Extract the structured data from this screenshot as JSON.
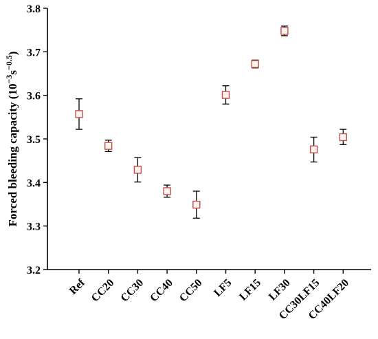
{
  "chart_data": {
    "type": "scatter",
    "title": "",
    "xlabel": "",
    "ylabel_main": "Forced bleeding capacity (10",
    "ylabel_exp1": "−3",
    "ylabel_mid": "s",
    "ylabel_exp2": "−0.5",
    "ylabel_end": ")",
    "categories": [
      "Ref",
      "CC20",
      "CC30",
      "CC40",
      "CC50",
      "LF5",
      "LF15",
      "LF30",
      "CC30LF15",
      "CC40LF20"
    ],
    "values": [
      3.557,
      3.484,
      3.429,
      3.38,
      3.349,
      3.601,
      3.672,
      3.748,
      3.476,
      3.504
    ],
    "error_low": [
      3.522,
      3.471,
      3.401,
      3.366,
      3.318,
      3.58,
      3.663,
      3.737,
      3.447,
      3.487
    ],
    "error_high": [
      3.592,
      3.497,
      3.457,
      3.394,
      3.38,
      3.622,
      3.681,
      3.759,
      3.504,
      3.522
    ],
    "ylim": [
      3.2,
      3.8
    ],
    "yticks": [
      3.2,
      3.3,
      3.4,
      3.5,
      3.6,
      3.7,
      3.8
    ],
    "ytick_labels": [
      "3.2",
      "3.3",
      "3.4",
      "3.5",
      "3.6",
      "3.7",
      "3.8"
    ],
    "grid": false,
    "legend": "none",
    "marker": "open-square",
    "marker_edge_color": "#c0504d",
    "marker_face_color": "#fff3ee",
    "errorbar_color": "#000000"
  }
}
